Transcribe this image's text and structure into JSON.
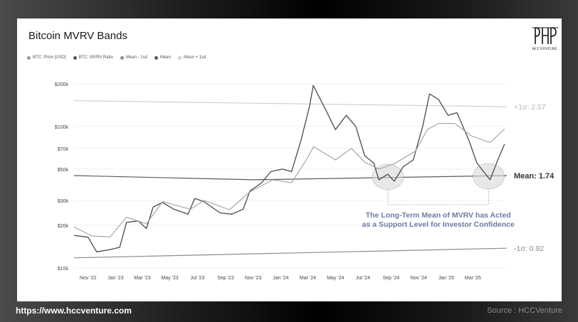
{
  "chart_data": {
    "type": "line",
    "title": "Bitcoin MVRV Bands",
    "legend": [
      {
        "name": "BTC: Price [USD]",
        "color": "#9a9a9a"
      },
      {
        "name": "BTC: MVRV Ratio",
        "color": "#555555"
      },
      {
        "name": "Mean - 1sd",
        "color": "#8c8c8c"
      },
      {
        "name": "Mean",
        "color": "#5a5a5a"
      },
      {
        "name": "Mean + 1sd",
        "color": "#d0d0d0"
      }
    ],
    "y_scale": "log",
    "ylim": [
      10000,
      200000
    ],
    "yticks": [
      {
        "value": 10000,
        "label": "$10k"
      },
      {
        "value": 20000,
        "label": "$20k"
      },
      {
        "value": 30000,
        "label": "$30k"
      },
      {
        "value": 50000,
        "label": "$50k"
      },
      {
        "value": 70000,
        "label": "$70k"
      },
      {
        "value": 100000,
        "label": "$100k"
      },
      {
        "value": 200000,
        "label": "$200k"
      }
    ],
    "xlim": [
      "2022-10-01",
      "2025-05-15"
    ],
    "xticks": [
      {
        "value": "2022-11-01",
        "label": "Nov '22"
      },
      {
        "value": "2023-01-01",
        "label": "Jan '23"
      },
      {
        "value": "2023-03-01",
        "label": "Mar '23"
      },
      {
        "value": "2023-05-01",
        "label": "May '23"
      },
      {
        "value": "2023-07-01",
        "label": "Jul '23"
      },
      {
        "value": "2023-09-01",
        "label": "Sep '23"
      },
      {
        "value": "2023-11-01",
        "label": "Nov '23"
      },
      {
        "value": "2024-01-01",
        "label": "Jan '24"
      },
      {
        "value": "2024-03-01",
        "label": "Mar '24"
      },
      {
        "value": "2024-05-01",
        "label": "May '24"
      },
      {
        "value": "2024-07-01",
        "label": "Jul '24"
      },
      {
        "value": "2024-09-01",
        "label": "Sep '24"
      },
      {
        "value": "2024-11-01",
        "label": "Nov '24"
      },
      {
        "value": "2025-01-01",
        "label": "Jan '25"
      },
      {
        "value": "2025-03-01",
        "label": "Mar '25"
      }
    ],
    "series": [
      {
        "name": "BTC: MVRV Ratio",
        "color": "#4a4a4a",
        "points": [
          [
            "2022-10-01",
            17000
          ],
          [
            "2022-11-01",
            16500
          ],
          [
            "2022-11-20",
            13000
          ],
          [
            "2022-12-20",
            13500
          ],
          [
            "2023-01-10",
            14000
          ],
          [
            "2023-01-25",
            21000
          ],
          [
            "2023-02-20",
            21500
          ],
          [
            "2023-03-10",
            19000
          ],
          [
            "2023-03-25",
            27000
          ],
          [
            "2023-04-15",
            29000
          ],
          [
            "2023-05-10",
            26000
          ],
          [
            "2023-06-10",
            24000
          ],
          [
            "2023-06-25",
            31000
          ],
          [
            "2023-07-15",
            29500
          ],
          [
            "2023-08-20",
            24500
          ],
          [
            "2023-09-15",
            24000
          ],
          [
            "2023-10-10",
            26000
          ],
          [
            "2023-10-25",
            35000
          ],
          [
            "2023-11-20",
            40000
          ],
          [
            "2023-12-10",
            48000
          ],
          [
            "2024-01-05",
            50000
          ],
          [
            "2024-01-25",
            48000
          ],
          [
            "2024-02-15",
            80000
          ],
          [
            "2024-03-05",
            140000
          ],
          [
            "2024-03-13",
            195000
          ],
          [
            "2024-04-10",
            130000
          ],
          [
            "2024-05-01",
            95000
          ],
          [
            "2024-05-25",
            120000
          ],
          [
            "2024-06-15",
            100000
          ],
          [
            "2024-07-05",
            62000
          ],
          [
            "2024-07-25",
            55000
          ],
          [
            "2024-08-05",
            42000
          ],
          [
            "2024-08-25",
            46000
          ],
          [
            "2024-09-08",
            41000
          ],
          [
            "2024-09-28",
            52000
          ],
          [
            "2024-10-20",
            58000
          ],
          [
            "2024-11-10",
            100000
          ],
          [
            "2024-11-25",
            170000
          ],
          [
            "2024-12-15",
            155000
          ],
          [
            "2025-01-05",
            120000
          ],
          [
            "2025-01-25",
            125000
          ],
          [
            "2025-02-20",
            80000
          ],
          [
            "2025-03-10",
            55000
          ],
          [
            "2025-04-08",
            42000
          ],
          [
            "2025-04-25",
            58000
          ],
          [
            "2025-05-10",
            75000
          ]
        ]
      },
      {
        "name": "BTC: Price [USD]",
        "color": "#a0a0a0",
        "points": [
          [
            "2022-10-01",
            19500
          ],
          [
            "2022-11-10",
            16800
          ],
          [
            "2022-12-20",
            16600
          ],
          [
            "2023-01-25",
            22800
          ],
          [
            "2023-03-10",
            20500
          ],
          [
            "2023-04-15",
            29500
          ],
          [
            "2023-06-15",
            26000
          ],
          [
            "2023-07-15",
            30000
          ],
          [
            "2023-09-10",
            25800
          ],
          [
            "2023-10-25",
            34500
          ],
          [
            "2023-12-15",
            42000
          ],
          [
            "2024-01-25",
            40000
          ],
          [
            "2024-02-25",
            57000
          ],
          [
            "2024-03-14",
            72000
          ],
          [
            "2024-05-01",
            58000
          ],
          [
            "2024-06-05",
            70000
          ],
          [
            "2024-07-05",
            56000
          ],
          [
            "2024-08-05",
            50000
          ],
          [
            "2024-09-08",
            54500
          ],
          [
            "2024-10-25",
            67000
          ],
          [
            "2024-11-20",
            95000
          ],
          [
            "2024-12-15",
            105000
          ],
          [
            "2025-01-20",
            105000
          ],
          [
            "2025-02-25",
            86000
          ],
          [
            "2025-04-08",
            77000
          ],
          [
            "2025-05-10",
            96000
          ]
        ]
      },
      {
        "name": "Mean + 1sd",
        "color": "#d0d0d0",
        "points": [
          [
            "2022-10-01",
            152000
          ],
          [
            "2025-05-15",
            138000
          ]
        ]
      },
      {
        "name": "Mean",
        "color": "#5a5a5a",
        "points": [
          [
            "2022-10-01",
            45000
          ],
          [
            "2023-11-01",
            42000
          ],
          [
            "2025-05-15",
            45000
          ]
        ]
      },
      {
        "name": "Mean - 1sd",
        "color": "#8c8c8c",
        "points": [
          [
            "2022-10-01",
            11800
          ],
          [
            "2025-05-15",
            13800
          ]
        ]
      }
    ],
    "band_labels": [
      {
        "text": "+1σ: 2.57",
        "color": "#b5b5b5",
        "anchor_value": 138000
      },
      {
        "text": "Mean: 1.74",
        "color": "#333333",
        "anchor_value": 45000
      },
      {
        "text": "-1σ: 0.92",
        "color": "#8c8c8c",
        "anchor_value": 13800
      }
    ],
    "highlights": [
      {
        "center": [
          "2024-08-25",
          44000
        ]
      },
      {
        "center": [
          "2025-04-05",
          44500
        ]
      }
    ],
    "annotation": {
      "line1": "The Long-Term Mean of MVRV has Acted",
      "line2": "as a Support Level for Investor Confidence",
      "color": "#6d7ba6"
    }
  },
  "brand": {
    "logo_text": "HCCVENTURE"
  },
  "footer": {
    "url": "https://www.hccventure.com",
    "source": "Source : HCCVenture"
  }
}
